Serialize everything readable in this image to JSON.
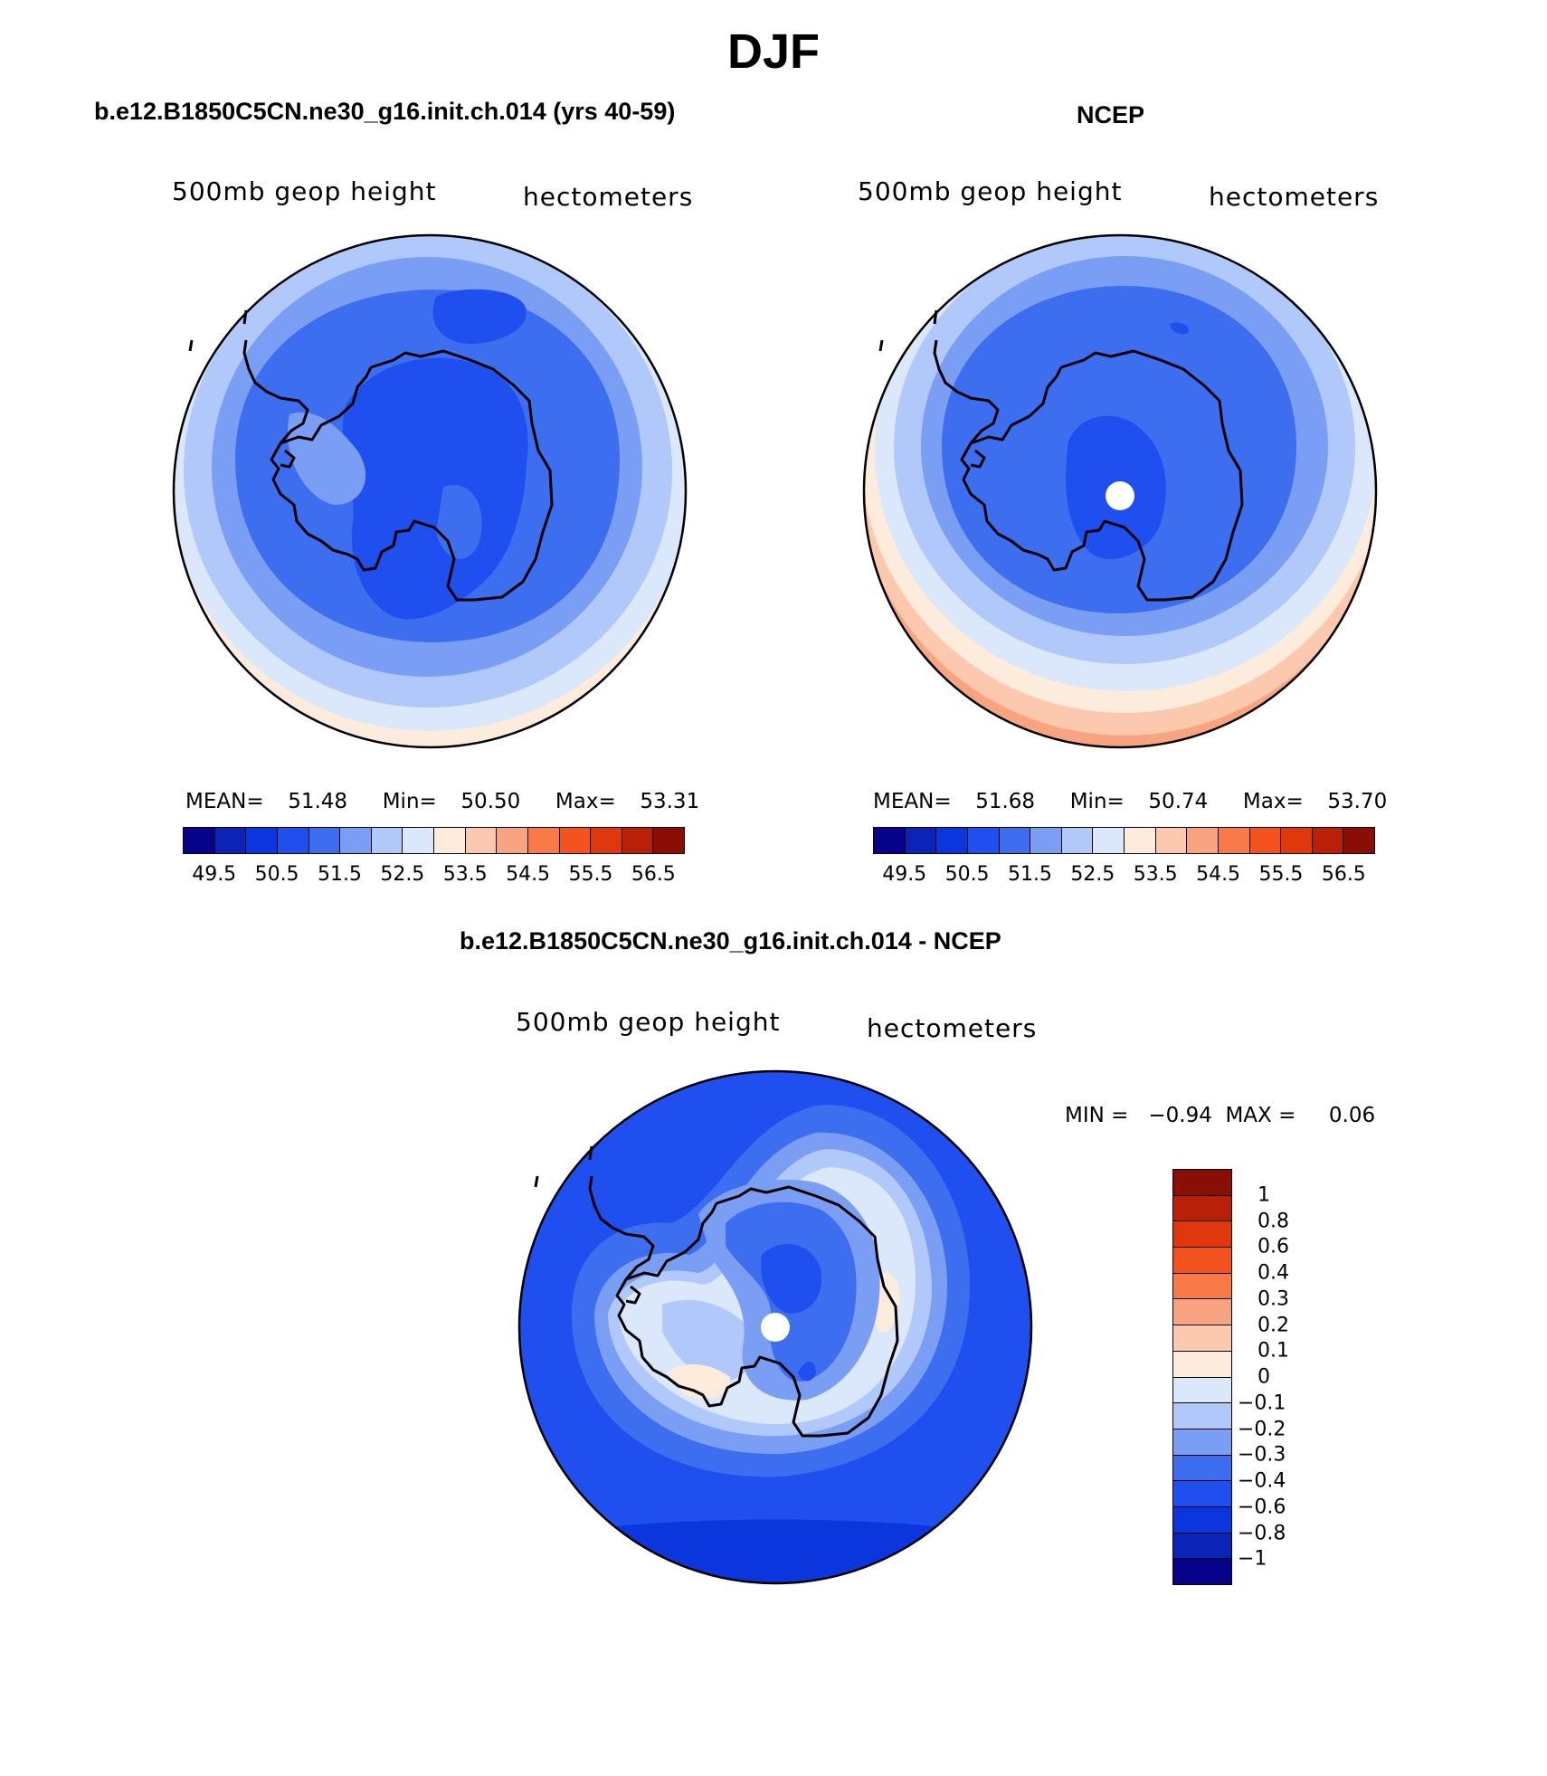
{
  "figure": {
    "title": "DJF"
  },
  "panels": {
    "model": {
      "title": "b.e12.B1850C5CN.ne30_g16.init.ch.014 (yrs 40-59)",
      "variable": "500mb geop height",
      "units": "hectometers",
      "mean_label": "MEAN=",
      "mean": "51.48",
      "min_label": "Min=",
      "min": "50.50",
      "max_label": "Max=",
      "max": "53.31"
    },
    "obs": {
      "title": "NCEP",
      "variable": "500mb geop height",
      "units": "hectometers",
      "mean_label": "MEAN=",
      "mean": "51.68",
      "min_label": "Min=",
      "min": "50.74",
      "max_label": "Max=",
      "max": "53.70"
    },
    "diff": {
      "title": "b.e12.B1850C5CN.ne30_g16.init.ch.014 - NCEP",
      "variable": "500mb geop height",
      "units": "hectometers",
      "minmax_text": "MIN =   −0.94  MAX =     0.06"
    }
  },
  "colorbars": {
    "levels_labels": [
      "49.5",
      "50.5",
      "51.5",
      "52.5",
      "53.5",
      "54.5",
      "55.5",
      "56.5"
    ],
    "levels_colors": [
      "#06038a",
      "#0a24b8",
      "#0b36dd",
      "#1f4fee",
      "#3d6ef0",
      "#7b9ef5",
      "#b0c8fa",
      "#dbe8fb",
      "#fdebdc",
      "#fcc8ae",
      "#f8a481",
      "#f77a47",
      "#f5531d",
      "#e0380d",
      "#b82007",
      "#8a0e04"
    ],
    "diff_labels": [
      "1",
      "0.8",
      "0.6",
      "0.4",
      "0.3",
      "0.2",
      "0.1",
      "0",
      "−0.1",
      "−0.2",
      "−0.3",
      "−0.4",
      "−0.6",
      "−0.8",
      "−1"
    ],
    "diff_colors": [
      "#8a0e04",
      "#b82007",
      "#e0380d",
      "#f5531d",
      "#f77a47",
      "#f8a481",
      "#fcc8ae",
      "#fdebdc",
      "#dbe8fb",
      "#b0c8fa",
      "#7b9ef5",
      "#3d6ef0",
      "#1f4fee",
      "#0b36dd",
      "#0a24b8",
      "#06038a"
    ]
  }
}
